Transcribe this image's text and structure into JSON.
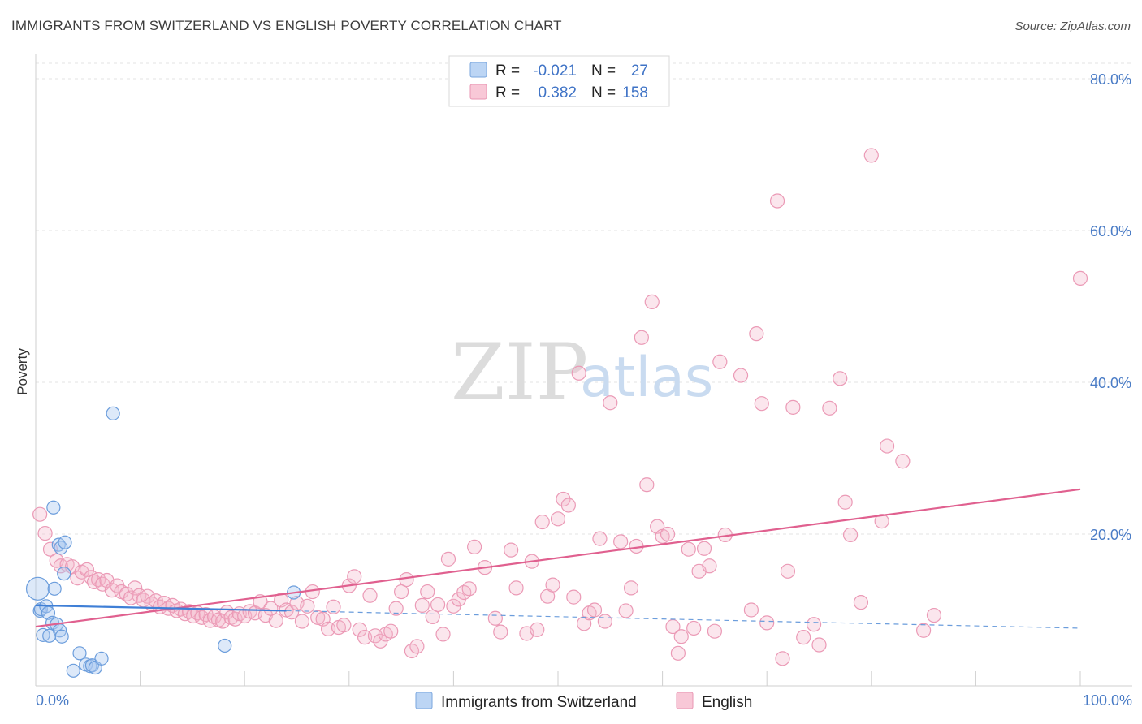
{
  "title": "IMMIGRANTS FROM SWITZERLAND VS ENGLISH POVERTY CORRELATION CHART",
  "source": "Source: ZipAtlas.com",
  "watermark": {
    "part1": "ZIP",
    "part2": "atlas"
  },
  "colors": {
    "blue": "#4a86d6",
    "blue_fill": "#a9c8f0",
    "pink": "#e0608f",
    "pink_fill": "#f4b8cc",
    "tick_text": "#4a7cc6"
  },
  "legend": {
    "rows": [
      {
        "r_label": "R =",
        "r_value": "-0.021",
        "n_label": "N =",
        "n_value": "27"
      },
      {
        "r_label": "R =",
        "r_value": "0.382",
        "n_label": "N =",
        "n_value": "158"
      }
    ]
  },
  "bottom_legend": {
    "series1": "Immigrants from Switzerland",
    "series2": "English"
  },
  "chart_data": {
    "type": "scatter",
    "title": "IMMIGRANTS FROM SWITZERLAND VS ENGLISH POVERTY CORRELATION CHART",
    "xlabel": "",
    "ylabel": "Poverty",
    "xlim": [
      0,
      100
    ],
    "ylim": [
      0,
      84
    ],
    "x_tick_labels": [
      "0.0%",
      "100.0%"
    ],
    "y_ticks": [
      20,
      40,
      60,
      80
    ],
    "y_tick_labels": [
      "20.0%",
      "40.0%",
      "60.0%",
      "80.0%"
    ],
    "grid": true,
    "series": [
      {
        "name": "Immigrants from Switzerland",
        "color": "#4a86d6",
        "trend": {
          "x": [
            0,
            24
          ],
          "y": [
            10.6,
            9.9
          ],
          "dashed_to": [
            100,
            7.6
          ]
        },
        "points": [
          {
            "x": 0.2,
            "y": 12.8,
            "big": true
          },
          {
            "x": 0.4,
            "y": 9.9
          },
          {
            "x": 0.5,
            "y": 10.1
          },
          {
            "x": 0.7,
            "y": 6.7
          },
          {
            "x": 1.0,
            "y": 10.5
          },
          {
            "x": 1.2,
            "y": 9.6
          },
          {
            "x": 1.3,
            "y": 6.6
          },
          {
            "x": 1.6,
            "y": 8.3
          },
          {
            "x": 1.7,
            "y": 23.5
          },
          {
            "x": 1.8,
            "y": 12.8
          },
          {
            "x": 2.0,
            "y": 8.1
          },
          {
            "x": 2.2,
            "y": 18.6
          },
          {
            "x": 2.3,
            "y": 7.3
          },
          {
            "x": 2.4,
            "y": 18.2
          },
          {
            "x": 2.5,
            "y": 6.5
          },
          {
            "x": 2.7,
            "y": 14.8
          },
          {
            "x": 2.8,
            "y": 18.9
          },
          {
            "x": 3.6,
            "y": 2.0
          },
          {
            "x": 4.2,
            "y": 4.3
          },
          {
            "x": 4.8,
            "y": 2.8
          },
          {
            "x": 5.2,
            "y": 2.6
          },
          {
            "x": 5.4,
            "y": 2.7
          },
          {
            "x": 5.7,
            "y": 2.4
          },
          {
            "x": 6.3,
            "y": 3.6
          },
          {
            "x": 7.4,
            "y": 35.9
          },
          {
            "x": 18.1,
            "y": 5.3
          },
          {
            "x": 24.7,
            "y": 12.3
          }
        ]
      },
      {
        "name": "English",
        "color": "#e0608f",
        "trend": {
          "x": [
            0,
            100
          ],
          "y": [
            7.8,
            25.9
          ]
        },
        "points": [
          {
            "x": 0.4,
            "y": 22.6
          },
          {
            "x": 0.9,
            "y": 20.1
          },
          {
            "x": 1.4,
            "y": 18.0
          },
          {
            "x": 2.0,
            "y": 16.5
          },
          {
            "x": 2.4,
            "y": 15.8
          },
          {
            "x": 3.0,
            "y": 16.0
          },
          {
            "x": 3.5,
            "y": 15.7
          },
          {
            "x": 4.0,
            "y": 14.2
          },
          {
            "x": 4.4,
            "y": 15.0
          },
          {
            "x": 4.9,
            "y": 15.3
          },
          {
            "x": 5.3,
            "y": 14.3
          },
          {
            "x": 5.6,
            "y": 13.7
          },
          {
            "x": 6.0,
            "y": 14.0
          },
          {
            "x": 6.4,
            "y": 13.4
          },
          {
            "x": 6.8,
            "y": 13.9
          },
          {
            "x": 7.3,
            "y": 12.6
          },
          {
            "x": 7.8,
            "y": 13.2
          },
          {
            "x": 8.2,
            "y": 12.4
          },
          {
            "x": 8.7,
            "y": 12.1
          },
          {
            "x": 9.1,
            "y": 11.6
          },
          {
            "x": 9.5,
            "y": 12.9
          },
          {
            "x": 9.9,
            "y": 11.9
          },
          {
            "x": 10.3,
            "y": 11.3
          },
          {
            "x": 10.7,
            "y": 11.8
          },
          {
            "x": 11.1,
            "y": 10.8
          },
          {
            "x": 11.5,
            "y": 11.2
          },
          {
            "x": 11.9,
            "y": 10.4
          },
          {
            "x": 12.3,
            "y": 10.9
          },
          {
            "x": 12.7,
            "y": 10.2
          },
          {
            "x": 13.1,
            "y": 10.6
          },
          {
            "x": 13.5,
            "y": 9.9
          },
          {
            "x": 13.9,
            "y": 10.1
          },
          {
            "x": 14.3,
            "y": 9.5
          },
          {
            "x": 14.7,
            "y": 9.8
          },
          {
            "x": 15.1,
            "y": 9.2
          },
          {
            "x": 15.5,
            "y": 9.6
          },
          {
            "x": 15.9,
            "y": 9.0
          },
          {
            "x": 16.3,
            "y": 9.4
          },
          {
            "x": 16.7,
            "y": 8.6
          },
          {
            "x": 17.1,
            "y": 9.1
          },
          {
            "x": 17.5,
            "y": 8.7
          },
          {
            "x": 17.9,
            "y": 8.5
          },
          {
            "x": 18.3,
            "y": 9.7
          },
          {
            "x": 18.7,
            "y": 9.0
          },
          {
            "x": 19.1,
            "y": 8.8
          },
          {
            "x": 19.5,
            "y": 9.5
          },
          {
            "x": 20.0,
            "y": 9.2
          },
          {
            "x": 20.5,
            "y": 9.8
          },
          {
            "x": 21.0,
            "y": 9.6
          },
          {
            "x": 21.5,
            "y": 11.1
          },
          {
            "x": 22.0,
            "y": 9.3
          },
          {
            "x": 22.5,
            "y": 10.2
          },
          {
            "x": 23.0,
            "y": 8.6
          },
          {
            "x": 23.5,
            "y": 11.3
          },
          {
            "x": 24.0,
            "y": 10.0
          },
          {
            "x": 24.5,
            "y": 9.7
          },
          {
            "x": 25.0,
            "y": 10.9
          },
          {
            "x": 25.5,
            "y": 8.5
          },
          {
            "x": 26.0,
            "y": 10.5
          },
          {
            "x": 26.5,
            "y": 12.4
          },
          {
            "x": 27.0,
            "y": 9.0
          },
          {
            "x": 27.5,
            "y": 8.8
          },
          {
            "x": 28.0,
            "y": 7.5
          },
          {
            "x": 28.5,
            "y": 10.4
          },
          {
            "x": 29.0,
            "y": 7.7
          },
          {
            "x": 29.5,
            "y": 8.0
          },
          {
            "x": 30.0,
            "y": 13.2
          },
          {
            "x": 30.5,
            "y": 14.4
          },
          {
            "x": 31.0,
            "y": 7.4
          },
          {
            "x": 31.5,
            "y": 6.4
          },
          {
            "x": 32.0,
            "y": 11.9
          },
          {
            "x": 32.5,
            "y": 6.6
          },
          {
            "x": 33.0,
            "y": 5.9
          },
          {
            "x": 33.5,
            "y": 6.8
          },
          {
            "x": 34.0,
            "y": 7.2
          },
          {
            "x": 34.5,
            "y": 10.2
          },
          {
            "x": 35.0,
            "y": 12.4
          },
          {
            "x": 35.5,
            "y": 14.0
          },
          {
            "x": 36.0,
            "y": 4.6
          },
          {
            "x": 36.5,
            "y": 5.2
          },
          {
            "x": 37.0,
            "y": 10.6
          },
          {
            "x": 37.5,
            "y": 12.4
          },
          {
            "x": 38.0,
            "y": 9.1
          },
          {
            "x": 38.5,
            "y": 10.7
          },
          {
            "x": 39.0,
            "y": 6.8
          },
          {
            "x": 39.5,
            "y": 16.7
          },
          {
            "x": 40.0,
            "y": 10.5
          },
          {
            "x": 40.5,
            "y": 11.4
          },
          {
            "x": 41.0,
            "y": 12.3
          },
          {
            "x": 41.5,
            "y": 12.8
          },
          {
            "x": 42.0,
            "y": 18.3
          },
          {
            "x": 43.0,
            "y": 15.6
          },
          {
            "x": 44.0,
            "y": 8.9
          },
          {
            "x": 44.5,
            "y": 7.1
          },
          {
            "x": 45.5,
            "y": 17.9
          },
          {
            "x": 46.0,
            "y": 12.9
          },
          {
            "x": 47.0,
            "y": 6.9
          },
          {
            "x": 47.5,
            "y": 16.4
          },
          {
            "x": 48.0,
            "y": 7.4
          },
          {
            "x": 48.5,
            "y": 21.6
          },
          {
            "x": 49.0,
            "y": 11.8
          },
          {
            "x": 49.5,
            "y": 13.3
          },
          {
            "x": 50.0,
            "y": 22.0
          },
          {
            "x": 50.5,
            "y": 24.6
          },
          {
            "x": 51.0,
            "y": 23.8
          },
          {
            "x": 51.5,
            "y": 11.7
          },
          {
            "x": 52.0,
            "y": 41.2
          },
          {
            "x": 52.5,
            "y": 8.2
          },
          {
            "x": 53.0,
            "y": 9.6
          },
          {
            "x": 53.5,
            "y": 10.0
          },
          {
            "x": 54.0,
            "y": 19.4
          },
          {
            "x": 54.5,
            "y": 8.5
          },
          {
            "x": 55.0,
            "y": 37.3
          },
          {
            "x": 56.0,
            "y": 19.0
          },
          {
            "x": 56.5,
            "y": 9.9
          },
          {
            "x": 57.0,
            "y": 12.9
          },
          {
            "x": 57.5,
            "y": 18.4
          },
          {
            "x": 58.0,
            "y": 45.9
          },
          {
            "x": 58.5,
            "y": 26.5
          },
          {
            "x": 59.0,
            "y": 50.6
          },
          {
            "x": 59.5,
            "y": 21.0
          },
          {
            "x": 60.0,
            "y": 19.7
          },
          {
            "x": 60.5,
            "y": 20.0
          },
          {
            "x": 61.0,
            "y": 7.8
          },
          {
            "x": 61.5,
            "y": 4.3
          },
          {
            "x": 61.8,
            "y": 6.5
          },
          {
            "x": 62.5,
            "y": 18.0
          },
          {
            "x": 63.0,
            "y": 7.6
          },
          {
            "x": 63.5,
            "y": 15.1
          },
          {
            "x": 64.0,
            "y": 18.1
          },
          {
            "x": 64.5,
            "y": 15.8
          },
          {
            "x": 65.0,
            "y": 7.2
          },
          {
            "x": 65.5,
            "y": 42.7
          },
          {
            "x": 66.0,
            "y": 19.9
          },
          {
            "x": 67.5,
            "y": 40.9
          },
          {
            "x": 68.5,
            "y": 10.0
          },
          {
            "x": 69.0,
            "y": 46.4
          },
          {
            "x": 69.5,
            "y": 37.2
          },
          {
            "x": 70.0,
            "y": 8.3
          },
          {
            "x": 71.0,
            "y": 63.9
          },
          {
            "x": 71.5,
            "y": 3.6
          },
          {
            "x": 72.0,
            "y": 15.1
          },
          {
            "x": 72.5,
            "y": 36.7
          },
          {
            "x": 73.5,
            "y": 6.4
          },
          {
            "x": 74.5,
            "y": 8.1
          },
          {
            "x": 75.0,
            "y": 5.4
          },
          {
            "x": 76.0,
            "y": 36.6
          },
          {
            "x": 77.0,
            "y": 40.5
          },
          {
            "x": 77.5,
            "y": 24.2
          },
          {
            "x": 78.0,
            "y": 19.9
          },
          {
            "x": 79.0,
            "y": 11.0
          },
          {
            "x": 80.0,
            "y": 69.9
          },
          {
            "x": 81.0,
            "y": 21.7
          },
          {
            "x": 81.5,
            "y": 31.6
          },
          {
            "x": 83.0,
            "y": 29.6
          },
          {
            "x": 85.0,
            "y": 7.3
          },
          {
            "x": 86.0,
            "y": 9.3
          },
          {
            "x": 100.0,
            "y": 53.7
          }
        ]
      }
    ]
  }
}
